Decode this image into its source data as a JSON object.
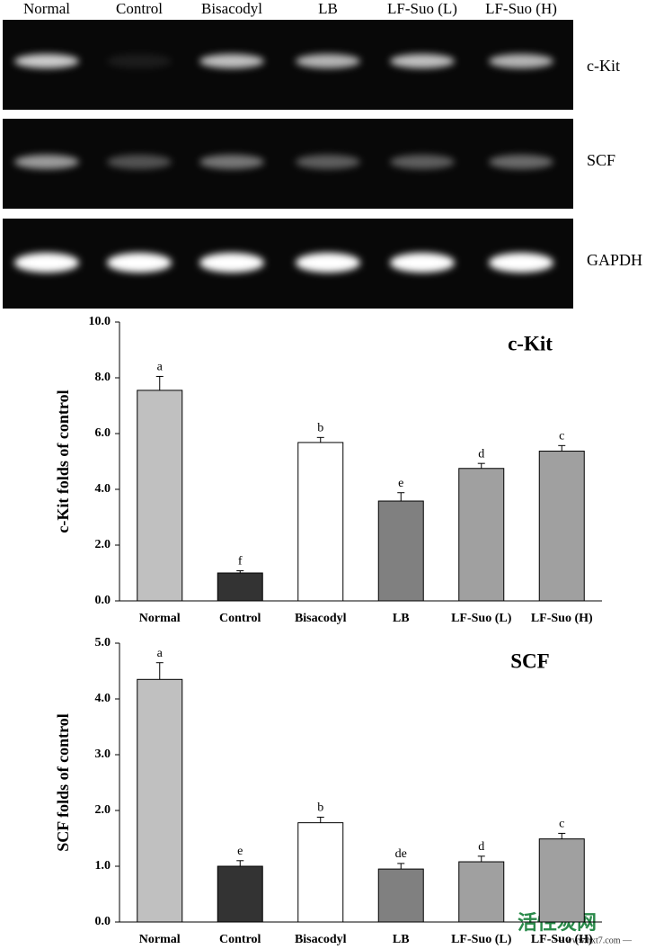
{
  "gel": {
    "lanes": [
      "Normal",
      "Control",
      "Bisacodyl",
      "LB",
      "LF-Suo (L)",
      "LF-Suo (H)"
    ],
    "rows": [
      "c-Kit",
      "SCF",
      "GAPDH"
    ]
  },
  "chart_data": [
    {
      "type": "bar",
      "title": "c-Kit",
      "y_label": "c-Kit folds of control",
      "categories": [
        "Normal",
        "Control",
        "Bisacodyl",
        "LB",
        "LF-Suo (L)",
        "LF-Suo (H)"
      ],
      "values": [
        7.55,
        1.0,
        5.68,
        3.58,
        4.75,
        5.37
      ],
      "errors": [
        0.5,
        0.08,
        0.18,
        0.3,
        0.18,
        0.2
      ],
      "annotations": [
        "a",
        "f",
        "b",
        "e",
        "d",
        "c"
      ],
      "colors": [
        "#c0c0c0",
        "#333333",
        "#ffffff",
        "#808080",
        "#a0a0a0",
        "#a0a0a0"
      ],
      "ylim": [
        0,
        10
      ],
      "yticks": [
        {
          "value": 0,
          "label": "0.0"
        },
        {
          "value": 2,
          "label": "2.0"
        },
        {
          "value": 4,
          "label": "4.0"
        },
        {
          "value": 6,
          "label": "6.0"
        },
        {
          "value": 8,
          "label": "8.0"
        },
        {
          "value": 10,
          "label": "10.0"
        }
      ]
    },
    {
      "type": "bar",
      "title": "SCF",
      "y_label": "SCF folds of control",
      "categories": [
        "Normal",
        "Control",
        "Bisacodyl",
        "LB",
        "LF-Suo (L)",
        "LF-Suo (H)"
      ],
      "values": [
        4.35,
        1.0,
        1.78,
        0.95,
        1.08,
        1.49
      ],
      "errors": [
        0.3,
        0.1,
        0.1,
        0.1,
        0.1,
        0.1
      ],
      "annotations": [
        "a",
        "e",
        "b",
        "de",
        "d",
        "c"
      ],
      "colors": [
        "#c0c0c0",
        "#333333",
        "#ffffff",
        "#808080",
        "#a0a0a0",
        "#a0a0a0"
      ],
      "ylim": [
        0,
        5
      ],
      "yticks": [
        {
          "value": 0,
          "label": "0.0"
        },
        {
          "value": 1,
          "label": "1.0"
        },
        {
          "value": 2,
          "label": "2.0"
        },
        {
          "value": 3,
          "label": "3.0"
        },
        {
          "value": 4,
          "label": "4.0"
        },
        {
          "value": 5,
          "label": "5.0"
        }
      ]
    }
  ],
  "watermark": {
    "text": "活性炭网",
    "url": "— www.hxt7.com —"
  }
}
